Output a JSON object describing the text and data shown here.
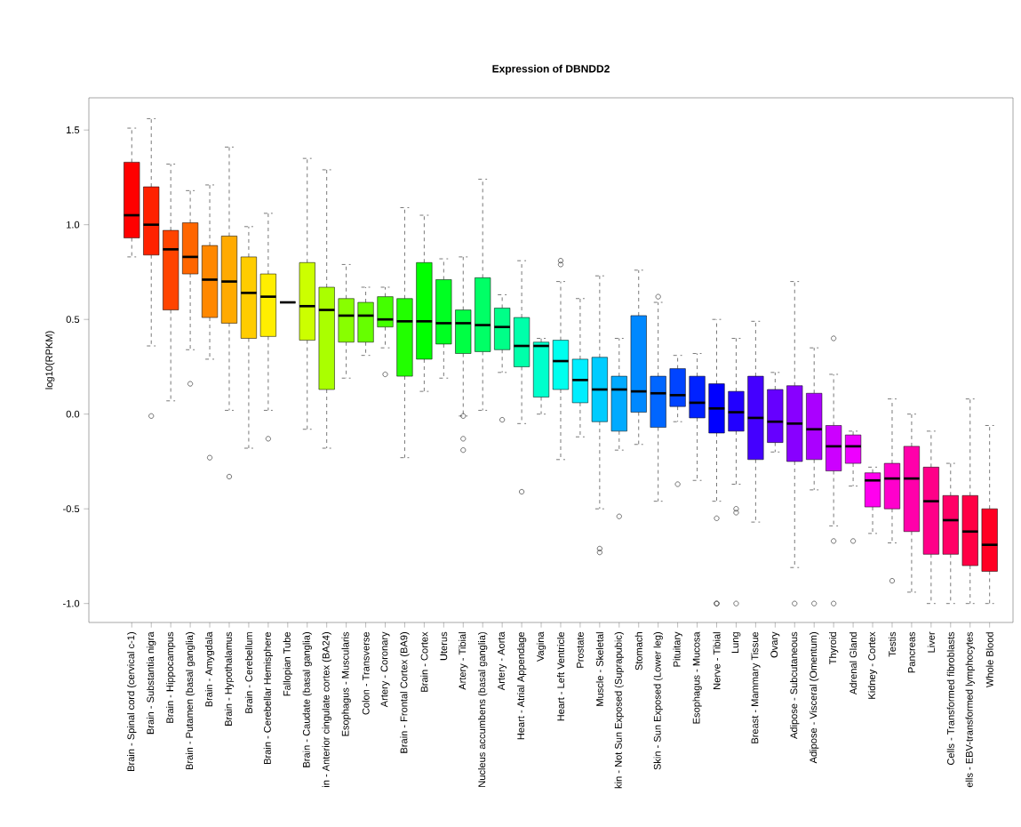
{
  "chart_data": {
    "type": "box",
    "title": "Expression of DBNDD2",
    "ylabel": "log10(RPKM)",
    "categories": [
      "Brain - Spinal cord (cervical c-1)",
      "Brain - Substantia nigra",
      "Brain - Hippocampus",
      "Brain - Putamen (basal ganglia)",
      "Brain - Amygdala",
      "Brain - Hypothalamus",
      "Brain - Cerebellum",
      "Brain - Cerebellar Hemisphere",
      "Fallopian Tube",
      "Brain - Caudate (basal ganglia)",
      "in - Anterior cingulate cortex (BA24)",
      "Esophagus - Muscularis",
      "Colon - Transverse",
      "Artery - Coronary",
      "Brain - Frontal Cortex (BA9)",
      "Brain - Cortex",
      "Uterus",
      "Artery - Tibial",
      "Nucleus accumbens (basal ganglia)",
      "Artery - Aorta",
      "Heart - Atrial Appendage",
      "Vagina",
      "Heart - Left Ventricle",
      "Prostate",
      "Muscle - Skeletal",
      "kin - Not Sun Exposed (Suprapubic)",
      "Stomach",
      "Skin - Sun Exposed (Lower leg)",
      "Pituitary",
      "Esophagus - Mucosa",
      "Nerve - Tibial",
      "Lung",
      "Breast - Mammary Tissue",
      "Ovary",
      "Adipose - Subcutaneous",
      "Adipose - Visceral (Omentum)",
      "Thyroid",
      "Adrenal Gland",
      "Kidney - Cortex",
      "Testis",
      "Pancreas",
      "Liver",
      "Cells - Transformed fibroblasts",
      "ells - EBV-transformed lymphocytes",
      "Whole Blood"
    ],
    "boxes": [
      {
        "low": 0.83,
        "q1": 0.93,
        "median": 1.05,
        "q3": 1.33,
        "high": 1.51
      },
      {
        "low": 0.36,
        "q1": 0.84,
        "median": 1.0,
        "q3": 1.2,
        "high": 1.56,
        "outliers": [
          -0.01
        ]
      },
      {
        "low": 0.07,
        "q1": 0.55,
        "median": 0.87,
        "q3": 0.97,
        "high": 1.32
      },
      {
        "low": 0.34,
        "q1": 0.74,
        "median": 0.83,
        "q3": 1.01,
        "high": 1.18,
        "outliers": [
          0.16
        ]
      },
      {
        "low": 0.29,
        "q1": 0.51,
        "median": 0.71,
        "q3": 0.89,
        "high": 1.21,
        "outliers": [
          -0.23
        ]
      },
      {
        "low": 0.02,
        "q1": 0.48,
        "median": 0.7,
        "q3": 0.94,
        "high": 1.41,
        "outliers": [
          -0.33
        ]
      },
      {
        "low": -0.18,
        "q1": 0.4,
        "median": 0.64,
        "q3": 0.83,
        "high": 0.99
      },
      {
        "low": 0.02,
        "q1": 0.41,
        "median": 0.62,
        "q3": 0.74,
        "high": 1.06,
        "outliers": [
          -0.13
        ]
      },
      {
        "low": 0.59,
        "q1": 0.59,
        "median": 0.59,
        "q3": 0.59,
        "high": 0.59
      },
      {
        "low": -0.08,
        "q1": 0.39,
        "median": 0.57,
        "q3": 0.8,
        "high": 1.35
      },
      {
        "low": -0.18,
        "q1": 0.13,
        "median": 0.55,
        "q3": 0.67,
        "high": 1.29
      },
      {
        "low": 0.19,
        "q1": 0.38,
        "median": 0.52,
        "q3": 0.61,
        "high": 0.79
      },
      {
        "low": 0.31,
        "q1": 0.38,
        "median": 0.52,
        "q3": 0.59,
        "high": 0.67
      },
      {
        "low": 0.35,
        "q1": 0.46,
        "median": 0.5,
        "q3": 0.62,
        "high": 0.67,
        "outliers": [
          0.21
        ]
      },
      {
        "low": -0.23,
        "q1": 0.2,
        "median": 0.49,
        "q3": 0.61,
        "high": 1.09
      },
      {
        "low": 0.12,
        "q1": 0.29,
        "median": 0.49,
        "q3": 0.8,
        "high": 1.05
      },
      {
        "low": 0.19,
        "q1": 0.37,
        "median": 0.48,
        "q3": 0.71,
        "high": 0.82
      },
      {
        "low": -0.01,
        "q1": 0.32,
        "median": 0.48,
        "q3": 0.55,
        "high": 0.83,
        "outliers": [
          -0.01,
          -0.13,
          -0.19
        ]
      },
      {
        "low": 0.02,
        "q1": 0.33,
        "median": 0.47,
        "q3": 0.72,
        "high": 1.24
      },
      {
        "low": 0.22,
        "q1": 0.34,
        "median": 0.46,
        "q3": 0.56,
        "high": 0.63,
        "outliers": [
          -0.03
        ]
      },
      {
        "low": -0.05,
        "q1": 0.25,
        "median": 0.36,
        "q3": 0.51,
        "high": 0.81,
        "outliers": [
          -0.41
        ]
      },
      {
        "low": 0.0,
        "q1": 0.09,
        "median": 0.36,
        "q3": 0.38,
        "high": 0.4
      },
      {
        "low": -0.24,
        "q1": 0.13,
        "median": 0.28,
        "q3": 0.39,
        "high": 0.7,
        "outliers": [
          0.79,
          0.81
        ]
      },
      {
        "low": -0.12,
        "q1": 0.06,
        "median": 0.18,
        "q3": 0.29,
        "high": 0.61
      },
      {
        "low": -0.5,
        "q1": -0.04,
        "median": 0.13,
        "q3": 0.3,
        "high": 0.73,
        "outliers": [
          -0.71,
          -0.73
        ]
      },
      {
        "low": -0.19,
        "q1": -0.09,
        "median": 0.13,
        "q3": 0.2,
        "high": 0.4,
        "outliers": [
          -0.54
        ]
      },
      {
        "low": -0.16,
        "q1": 0.01,
        "median": 0.12,
        "q3": 0.52,
        "high": 0.76
      },
      {
        "low": -0.46,
        "q1": -0.07,
        "median": 0.11,
        "q3": 0.2,
        "high": 0.59,
        "outliers": [
          0.62
        ]
      },
      {
        "low": -0.04,
        "q1": 0.04,
        "median": 0.1,
        "q3": 0.24,
        "high": 0.31,
        "outliers": [
          -0.37
        ]
      },
      {
        "low": -0.35,
        "q1": -0.02,
        "median": 0.06,
        "q3": 0.2,
        "high": 0.32
      },
      {
        "low": -0.46,
        "q1": -0.1,
        "median": 0.03,
        "q3": 0.16,
        "high": 0.5,
        "outliers": [
          -0.55,
          -1.0,
          -1.0
        ]
      },
      {
        "low": -0.37,
        "q1": -0.09,
        "median": 0.01,
        "q3": 0.12,
        "high": 0.4,
        "outliers": [
          -0.5,
          -0.52,
          -1.0
        ]
      },
      {
        "low": -0.57,
        "q1": -0.24,
        "median": -0.02,
        "q3": 0.2,
        "high": 0.49
      },
      {
        "low": -0.2,
        "q1": -0.15,
        "median": -0.04,
        "q3": 0.13,
        "high": 0.22
      },
      {
        "low": -0.81,
        "q1": -0.25,
        "median": -0.05,
        "q3": 0.15,
        "high": 0.7,
        "outliers": [
          -1.0
        ]
      },
      {
        "low": -0.4,
        "q1": -0.24,
        "median": -0.08,
        "q3": 0.11,
        "high": 0.35,
        "outliers": [
          -1.0
        ]
      },
      {
        "low": -0.59,
        "q1": -0.3,
        "median": -0.17,
        "q3": -0.06,
        "high": 0.21,
        "outliers": [
          0.4,
          -0.67,
          -1.0
        ]
      },
      {
        "low": -0.38,
        "q1": -0.26,
        "median": -0.17,
        "q3": -0.11,
        "high": -0.09,
        "outliers": [
          -0.67
        ]
      },
      {
        "low": -0.63,
        "q1": -0.49,
        "median": -0.35,
        "q3": -0.31,
        "high": -0.28
      },
      {
        "low": -0.68,
        "q1": -0.5,
        "median": -0.34,
        "q3": -0.26,
        "high": 0.08,
        "outliers": [
          -0.88
        ]
      },
      {
        "low": -0.94,
        "q1": -0.62,
        "median": -0.34,
        "q3": -0.17,
        "high": 0.0
      },
      {
        "low": -1.0,
        "q1": -0.74,
        "median": -0.46,
        "q3": -0.28,
        "high": -0.09
      },
      {
        "low": -1.0,
        "q1": -0.74,
        "median": -0.56,
        "q3": -0.43,
        "high": -0.26
      },
      {
        "low": -1.0,
        "q1": -0.8,
        "median": -0.62,
        "q3": -0.43,
        "high": 0.08
      },
      {
        "low": -1.0,
        "q1": -0.83,
        "median": -0.69,
        "q3": -0.5,
        "high": -0.06
      }
    ],
    "colors": [
      "#ff0000",
      "#ff2200",
      "#ff4400",
      "#ff6600",
      "#ff8800",
      "#ffaa00",
      "#ffcc00",
      "#ffee00",
      "#000000",
      "#ccff00",
      "#aaff00",
      "#88ff00",
      "#66ff00",
      "#44ff00",
      "#22ff00",
      "#00ff00",
      "#00ff22",
      "#00ff44",
      "#00ff66",
      "#00ff88",
      "#00ffaa",
      "#00ffcc",
      "#00ffee",
      "#00eeff",
      "#00ccff",
      "#00aaff",
      "#0088ff",
      "#0066ff",
      "#0044ff",
      "#0022ff",
      "#0000ff",
      "#2200ff",
      "#4400ff",
      "#6600ff",
      "#8800ff",
      "#aa00ff",
      "#cc00ff",
      "#ee00ff",
      "#ff00ee",
      "#ff00cc",
      "#ff00aa",
      "#ff0088",
      "#ff0066",
      "#ff0044",
      "#ff0022"
    ],
    "ylim": [
      -1.1,
      1.67
    ],
    "yticks": [
      {
        "value": -1.0,
        "label": "-1.0"
      },
      {
        "value": -0.5,
        "label": "-0.5"
      },
      {
        "value": 0.0,
        "label": "0.0"
      },
      {
        "value": 0.5,
        "label": "0.5"
      },
      {
        "value": 1.0,
        "label": "1.0"
      },
      {
        "value": 1.5,
        "label": "1.5"
      }
    ]
  }
}
